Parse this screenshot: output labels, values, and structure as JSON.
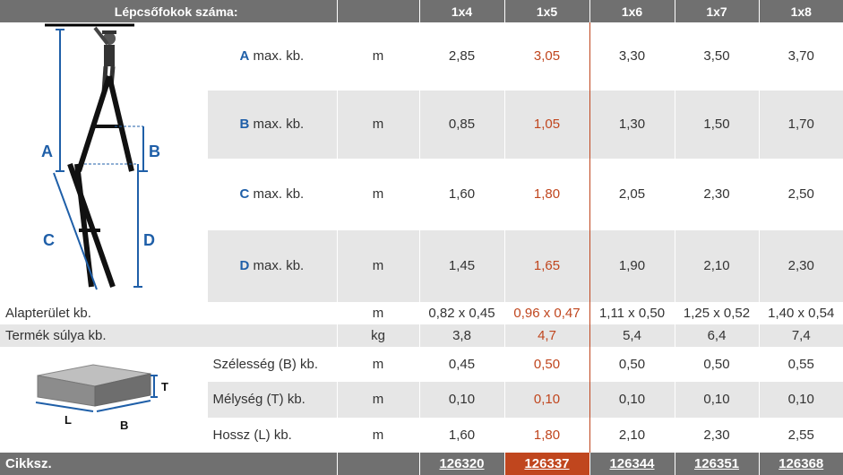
{
  "header": {
    "title": "Lépcsőfokok száma:",
    "cols": [
      "1x4",
      "1x5",
      "1x6",
      "1x7",
      "1x8"
    ]
  },
  "rows": [
    {
      "letter": "A",
      "label": "max. kb.",
      "unit": "m",
      "values": [
        "2,85",
        "3,05",
        "3,30",
        "3,50",
        "3,70"
      ]
    },
    {
      "letter": "B",
      "label": "max. kb.",
      "unit": "m",
      "values": [
        "0,85",
        "1,05",
        "1,30",
        "1,50",
        "1,70"
      ]
    },
    {
      "letter": "C",
      "label": "max. kb.",
      "unit": "m",
      "values": [
        "1,60",
        "1,80",
        "2,05",
        "2,30",
        "2,50"
      ]
    },
    {
      "letter": "D",
      "label": "max. kb.",
      "unit": "m",
      "values": [
        "1,45",
        "1,65",
        "1,90",
        "2,10",
        "2,30"
      ]
    }
  ],
  "footprint": {
    "label": "Alapterület kb.",
    "unit": "m",
    "values": [
      "0,82 x 0,45",
      "0,96 x 0,47",
      "1,11 x 0,50",
      "1,25 x 0,52",
      "1,40 x 0,54"
    ]
  },
  "weight": {
    "label": "Termék súlya kb.",
    "unit": "kg",
    "values": [
      "3,8",
      "4,7",
      "5,4",
      "6,4",
      "7,4"
    ]
  },
  "package": [
    {
      "label": "Szélesség (B) kb.",
      "unit": "m",
      "values": [
        "0,45",
        "0,50",
        "0,50",
        "0,50",
        "0,55"
      ]
    },
    {
      "label": "Mélység (T) kb.",
      "unit": "m",
      "values": [
        "0,10",
        "0,10",
        "0,10",
        "0,10",
        "0,10"
      ]
    },
    {
      "label": "Hossz (L) kb.",
      "unit": "m",
      "values": [
        "1,60",
        "1,80",
        "2,10",
        "2,30",
        "2,55"
      ]
    }
  ],
  "footer": {
    "label": "Cikksz.",
    "codes": [
      "126320",
      "126337",
      "126344",
      "126351",
      "126368"
    ]
  },
  "diagram_letters": {
    "a": "A",
    "b": "B",
    "c": "C",
    "d": "D",
    "t": "T",
    "l": "L",
    "b2": "B"
  },
  "colors": {
    "header_bg": "#707070",
    "highlight": "#c0461e",
    "letter_blue": "#1f5fa8",
    "row_gray": "#e6e6e6"
  }
}
